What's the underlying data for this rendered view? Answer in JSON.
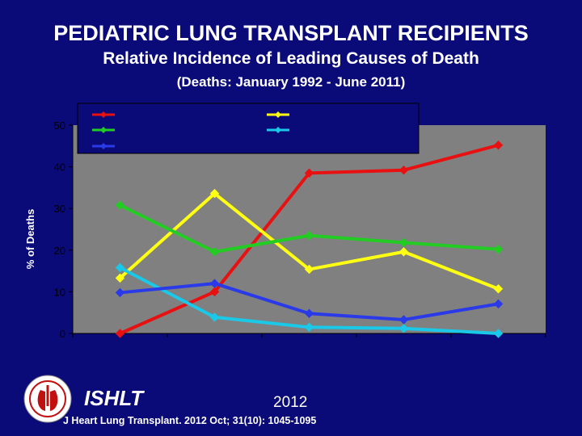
{
  "header": {
    "title": "PEDIATRIC LUNG TRANSPLANT RECIPIENTS",
    "subtitle": "Relative Incidence of Leading Causes of Death",
    "period": "(Deaths: January 1992 - June 2011)"
  },
  "footer": {
    "brand": "ISHLT",
    "year": "2012",
    "citation": "J Heart Lung Transplant. 2012 Oct; 31(10): 1045-1095"
  },
  "colors": {
    "background": "#0a0a78",
    "plot_area": "#808080",
    "legend_box": "#0a0a78"
  },
  "chart_data": {
    "type": "line",
    "title": "",
    "xlabel": "",
    "ylabel": "% of Deaths",
    "ylim": [
      0,
      50
    ],
    "yticks": [
      0,
      10,
      20,
      30,
      40,
      50
    ],
    "grid": false,
    "legend_placement": "top",
    "categories": [
      "",
      "",
      "",
      "",
      ""
    ],
    "series": [
      {
        "name": "",
        "color": "#e81010",
        "values": [
          0,
          10,
          38.5,
          39.2,
          45.2
        ]
      },
      {
        "name": "",
        "color": "#ffff14",
        "values": [
          13.3,
          33.6,
          15.4,
          19.6,
          10.7
        ]
      },
      {
        "name": "",
        "color": "#22cc22",
        "values": [
          30.8,
          19.6,
          23.5,
          21.8,
          20.2
        ]
      },
      {
        "name": "",
        "color": "#1ac8e8",
        "values": [
          15.8,
          3.9,
          1.5,
          1.2,
          0
        ]
      },
      {
        "name": "",
        "color": "#2a3ae8",
        "values": [
          9.8,
          12,
          4.8,
          3.3,
          7.1
        ]
      }
    ]
  }
}
